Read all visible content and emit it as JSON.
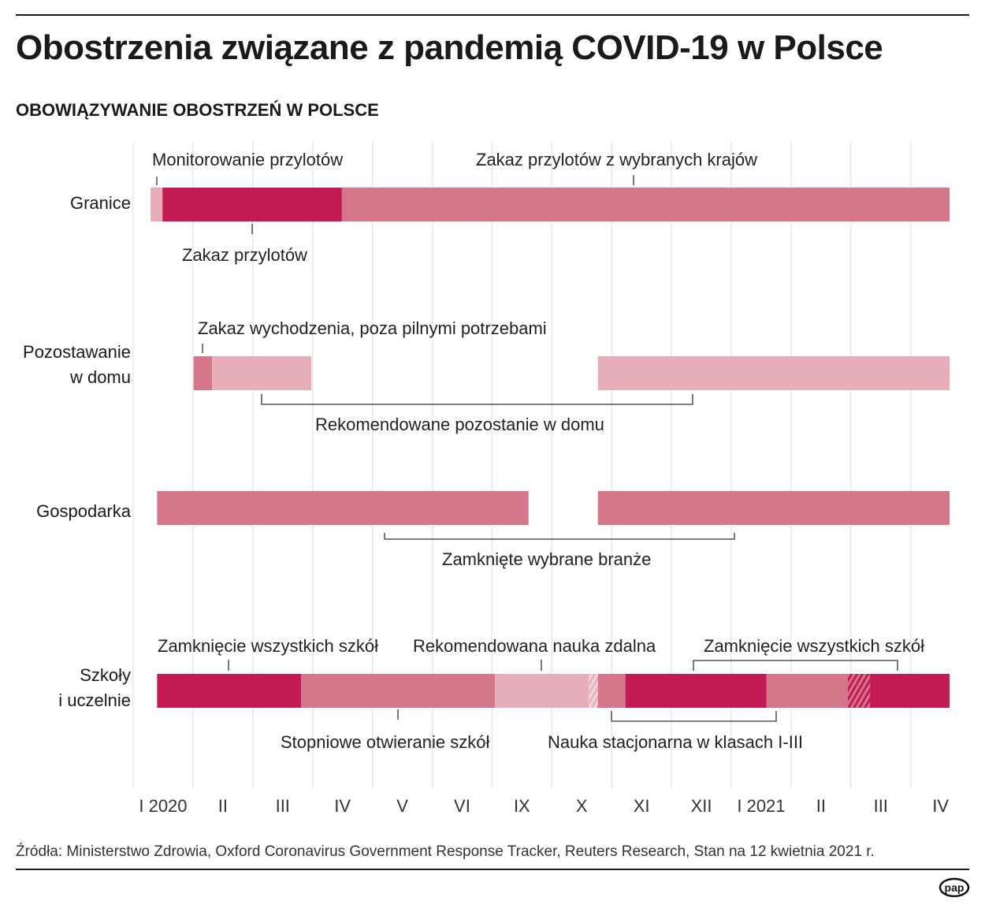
{
  "title": "Obostrzenia związane z pandemią COVID-19 w Polsce",
  "subtitle": "OBOWIĄZYWANIE OBOSTRZEŃ W POLSCE",
  "source": "Źródła: Ministerstwo Zdrowia, Oxford Coronavirus Government Response Tracker, Reuters Research, Stan na 12 kwietnia 2021 r.",
  "logo": "pap",
  "colors": {
    "strong": "#c21b56",
    "medium": "#d6768a",
    "light": "#e6aeb8",
    "grid": "#e3e3e3"
  },
  "chart_data": {
    "type": "timeline",
    "x_unit": "month slot index (0 = start of I 2020; VII–VIII 2020 omitted from axis)",
    "x_ticks": [
      "I 2020",
      "II",
      "III",
      "IV",
      "V",
      "VI",
      "IX",
      "X",
      "XI",
      "XII",
      "I 2021",
      "II",
      "III",
      "IV"
    ],
    "grid": true,
    "rows": [
      {
        "label": "Granice",
        "segments": [
          {
            "start": 0.29,
            "end": 0.49,
            "level": "light"
          },
          {
            "start": 0.49,
            "end": 3.49,
            "level": "strong"
          },
          {
            "start": 3.49,
            "end": 13.65,
            "level": "medium"
          }
        ]
      },
      {
        "label": "Pozostawanie w domu",
        "segments": [
          {
            "start": 1.01,
            "end": 1.32,
            "level": "medium"
          },
          {
            "start": 1.32,
            "end": 2.98,
            "level": "light"
          },
          {
            "start": 7.77,
            "end": 13.65,
            "level": "light"
          }
        ]
      },
      {
        "label": "Gospodarka",
        "segments": [
          {
            "start": 0.4,
            "end": 6.61,
            "level": "medium"
          },
          {
            "start": 7.77,
            "end": 13.65,
            "level": "medium"
          }
        ]
      },
      {
        "label": "Szkoły i uczelnie",
        "segments": [
          {
            "start": 0.4,
            "end": 2.81,
            "level": "strong"
          },
          {
            "start": 2.81,
            "end": 6.05,
            "level": "medium"
          },
          {
            "start": 6.05,
            "end": 7.62,
            "level": "light"
          },
          {
            "start": 7.62,
            "end": 7.77,
            "level": "light",
            "hatched": true
          },
          {
            "start": 7.77,
            "end": 8.23,
            "level": "medium"
          },
          {
            "start": 8.23,
            "end": 10.59,
            "level": "strong"
          },
          {
            "start": 10.59,
            "end": 11.95,
            "level": "medium"
          },
          {
            "start": 11.95,
            "end": 12.32,
            "level": "strong",
            "hatched": true
          },
          {
            "start": 12.32,
            "end": 13.65,
            "level": "strong"
          }
        ]
      }
    ],
    "row_labels": {
      "granice": "Granice",
      "dom1": "Pozostawanie",
      "dom2": "w domu",
      "gosp": "Gospodarka",
      "szk1": "Szkoły",
      "szk2": "i uczelnie"
    },
    "annotations": {
      "monitoring": "Monitorowanie przylotów",
      "selected_ban": "Zakaz przylotów z wybranych krajów",
      "flight_ban": "Zakaz przylotów",
      "stay_ban": "Zakaz wychodzenia, poza pilnymi potrzebami",
      "stay_rec": "Rekomendowane pozostanie w domu",
      "closed": "Zamknięte wybrane branże",
      "schools_closed_1": "Zamknięcie wszystkich szkół",
      "remote_rec": "Rekomendowana nauka zdalna",
      "schools_closed_2": "Zamknięcie wszystkich szkół",
      "gradual": "Stopniowe otwieranie szkół",
      "stationary": "Nauka stacjonarna w klasach I-III"
    }
  }
}
